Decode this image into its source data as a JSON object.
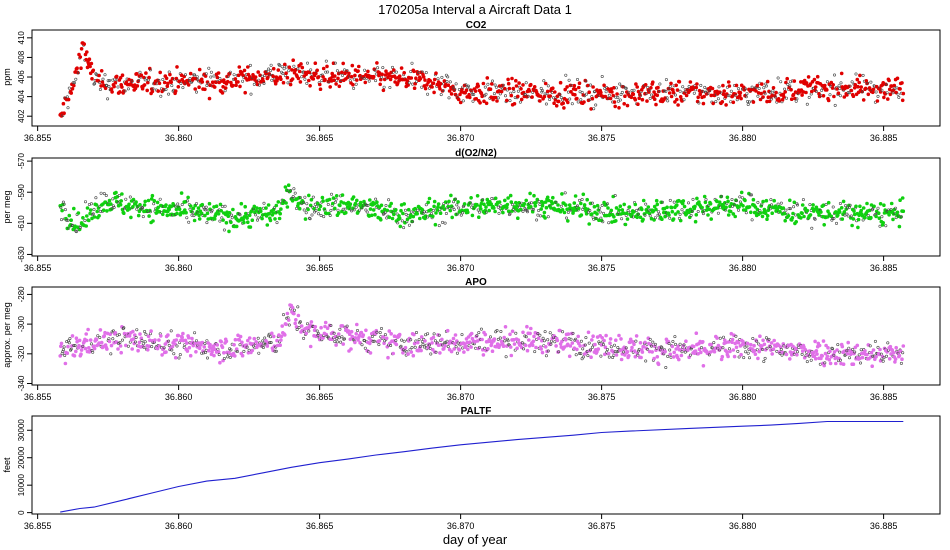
{
  "figure": {
    "title": "170205a   Interval a Aircraft Data 1",
    "xlabel": "day of year"
  },
  "chart_data": [
    {
      "type": "scatter",
      "title": "CO2",
      "ylabel": "ppm",
      "xlim": [
        36.8548,
        36.887
      ],
      "ylim": [
        401,
        410.8
      ],
      "xticks": [
        36.855,
        36.86,
        36.865,
        36.87,
        36.875,
        36.88,
        36.885
      ],
      "xtick_labels": [
        "36.855",
        "36.860",
        "36.865",
        "36.870",
        "36.875",
        "36.880",
        "36.885"
      ],
      "yticks": [
        402,
        404,
        406,
        408,
        410
      ],
      "ytick_labels": [
        "402",
        "404",
        "406",
        "408",
        "410"
      ],
      "color": "#e00000",
      "x_start": 36.8558,
      "x_end": 36.8857,
      "profile": [
        [
          36.8558,
          401.5
        ],
        [
          36.856,
          403.5
        ],
        [
          36.8562,
          404.5
        ],
        [
          36.8564,
          406.5
        ],
        [
          36.8566,
          409.5
        ],
        [
          36.8568,
          407.0
        ],
        [
          36.8572,
          405.2
        ],
        [
          36.858,
          405.3
        ],
        [
          36.86,
          405.5
        ],
        [
          36.862,
          405.7
        ],
        [
          36.864,
          406.4
        ],
        [
          36.866,
          406.0
        ],
        [
          36.868,
          405.8
        ],
        [
          36.869,
          405.5
        ],
        [
          36.87,
          404.5
        ],
        [
          36.872,
          404.4
        ],
        [
          36.875,
          404.3
        ],
        [
          36.878,
          404.4
        ],
        [
          36.88,
          404.3
        ],
        [
          36.882,
          404.7
        ],
        [
          36.884,
          404.9
        ],
        [
          36.8857,
          404.7
        ]
      ],
      "noise": 0.9
    },
    {
      "type": "scatter",
      "title": "d(O2/N2)",
      "ylabel": "per meg",
      "xlim": [
        36.8548,
        36.887
      ],
      "ylim": [
        -631,
        -568
      ],
      "xticks": [
        36.855,
        36.86,
        36.865,
        36.87,
        36.875,
        36.88,
        36.885
      ],
      "xtick_labels": [
        "36.855",
        "36.860",
        "36.865",
        "36.870",
        "36.875",
        "36.880",
        "36.885"
      ],
      "yticks": [
        -630,
        -610,
        -590,
        -570
      ],
      "ytick_labels": [
        "-630",
        "-610",
        "-590",
        "-570"
      ],
      "color": "#10d010",
      "x_start": 36.8558,
      "x_end": 36.8857,
      "profile": [
        [
          36.8558,
          -598
        ],
        [
          36.8562,
          -608
        ],
        [
          36.8565,
          -612
        ],
        [
          36.857,
          -600
        ],
        [
          36.8575,
          -595
        ],
        [
          36.858,
          -598
        ],
        [
          36.859,
          -600
        ],
        [
          36.86,
          -602
        ],
        [
          36.861,
          -604
        ],
        [
          36.862,
          -606
        ],
        [
          36.8635,
          -603
        ],
        [
          36.864,
          -590
        ],
        [
          36.8645,
          -600
        ],
        [
          36.866,
          -598
        ],
        [
          36.868,
          -605
        ],
        [
          36.87,
          -600
        ],
        [
          36.872,
          -598
        ],
        [
          36.874,
          -600
        ],
        [
          36.876,
          -604
        ],
        [
          36.878,
          -600
        ],
        [
          36.88,
          -598
        ],
        [
          36.882,
          -603
        ],
        [
          36.884,
          -604
        ],
        [
          36.8857,
          -604
        ]
      ],
      "noise": 5.5
    },
    {
      "type": "scatter",
      "title": "APO",
      "ylabel": "approx. per meg",
      "xlim": [
        36.8548,
        36.887
      ],
      "ylim": [
        -341,
        -275
      ],
      "xticks": [
        36.855,
        36.86,
        36.865,
        36.87,
        36.875,
        36.88,
        36.885
      ],
      "xtick_labels": [
        "36.855",
        "36.860",
        "36.865",
        "36.870",
        "36.875",
        "36.880",
        "36.885"
      ],
      "yticks": [
        -340,
        -320,
        -300,
        -280
      ],
      "ytick_labels": [
        "-340",
        "-320",
        "-300",
        "-280"
      ],
      "color": "#e070e8",
      "x_start": 36.8558,
      "x_end": 36.8857,
      "profile": [
        [
          36.8558,
          -318
        ],
        [
          36.857,
          -312
        ],
        [
          36.858,
          -310
        ],
        [
          36.86,
          -314
        ],
        [
          36.862,
          -316
        ],
        [
          36.8635,
          -312
        ],
        [
          36.864,
          -292
        ],
        [
          36.8645,
          -305
        ],
        [
          36.866,
          -308
        ],
        [
          36.868,
          -314
        ],
        [
          36.87,
          -312
        ],
        [
          36.872,
          -311
        ],
        [
          36.874,
          -313
        ],
        [
          36.876,
          -316
        ],
        [
          36.878,
          -318
        ],
        [
          36.88,
          -315
        ],
        [
          36.882,
          -318
        ],
        [
          36.884,
          -320
        ],
        [
          36.8857,
          -320
        ]
      ],
      "noise": 6
    },
    {
      "type": "line",
      "title": "PALTF",
      "ylabel": "feet",
      "xlim": [
        36.8548,
        36.887
      ],
      "ylim": [
        -500,
        35200
      ],
      "xticks": [
        36.855,
        36.86,
        36.865,
        36.87,
        36.875,
        36.88,
        36.885
      ],
      "xtick_labels": [
        "36.855",
        "36.860",
        "36.865",
        "36.870",
        "36.875",
        "36.880",
        "36.885"
      ],
      "yticks": [
        0,
        10000,
        20000,
        30000
      ],
      "ytick_labels": [
        "0",
        "10000",
        "20000",
        "30000"
      ],
      "color": "#2020d0",
      "x": [
        36.8558,
        36.8565,
        36.857,
        36.858,
        36.859,
        36.86,
        36.861,
        36.862,
        36.863,
        36.864,
        36.865,
        36.866,
        36.867,
        36.868,
        36.869,
        36.87,
        36.872,
        36.874,
        36.875,
        36.876,
        36.878,
        36.88,
        36.881,
        36.882,
        36.883,
        36.8857
      ],
      "y": [
        200,
        1500,
        2000,
        4500,
        7000,
        9500,
        11500,
        12500,
        14500,
        16500,
        18200,
        19500,
        21000,
        22200,
        23500,
        24700,
        26600,
        28200,
        29200,
        29700,
        30600,
        31500,
        31900,
        32500,
        33200,
        33200
      ]
    }
  ]
}
